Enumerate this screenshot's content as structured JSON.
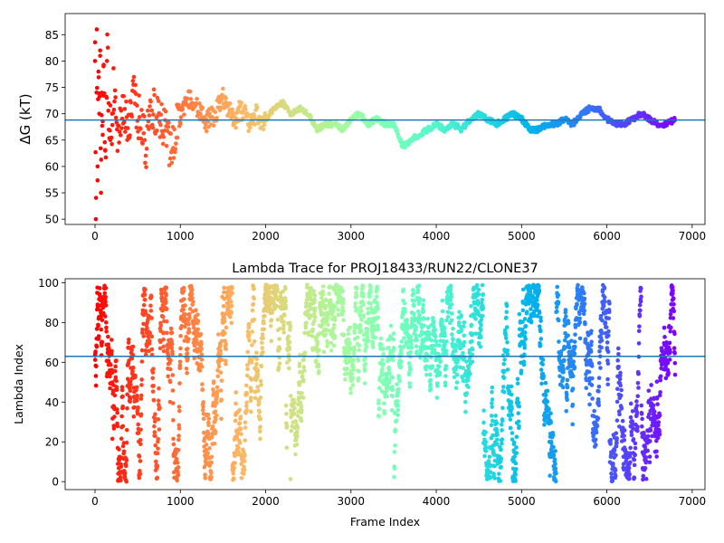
{
  "chart_data": [
    {
      "type": "scatter",
      "title": "",
      "xlabel": "",
      "ylabel": "ΔG (kT)",
      "xlim": [
        -350,
        7150
      ],
      "ylim": [
        49,
        89
      ],
      "xticks": [
        0,
        1000,
        2000,
        3000,
        4000,
        5000,
        6000,
        7000
      ],
      "xtick_labels": [
        "0",
        "1000",
        "2000",
        "3000",
        "4000",
        "5000",
        "6000",
        "7000"
      ],
      "yticks": [
        50,
        55,
        60,
        65,
        70,
        75,
        80,
        85
      ],
      "ytick_labels": [
        "50",
        "55",
        "60",
        "65",
        "70",
        "75",
        "80",
        "85"
      ],
      "colormap": "rainbow",
      "hline": 68.8,
      "hline_color": "#1f77b4",
      "grid": false,
      "n_frames": 6800,
      "series": [
        {
          "x": [
            0,
            10,
            20,
            30,
            40,
            50,
            60,
            70,
            80,
            90,
            100,
            120,
            140,
            160,
            180,
            200,
            230,
            260,
            300,
            350,
            400,
            450,
            500,
            550,
            600,
            650,
            700,
            750,
            800,
            850,
            900,
            950,
            1000,
            1050,
            1100,
            1150,
            1200,
            1250,
            1300,
            1350,
            1400,
            1450,
            1500,
            1550,
            1600,
            1650,
            1700,
            1750,
            1800,
            1850,
            1900,
            1950,
            2000,
            2100,
            2200,
            2300,
            2400,
            2500,
            2600,
            2700,
            2800,
            2900,
            3000,
            3100,
            3200,
            3300,
            3400,
            3500,
            3600,
            3650,
            3700,
            3800,
            3900,
            4000,
            4100,
            4200,
            4300,
            4400,
            4500,
            4600,
            4700,
            4800,
            4900,
            5000,
            5100,
            5200,
            5300,
            5400,
            5500,
            5600,
            5700,
            5800,
            5900,
            6000,
            6100,
            6200,
            6300,
            6400,
            6500,
            6600,
            6700,
            6800
          ],
          "y": [
            80,
            50,
            86,
            60,
            78,
            70,
            82,
            55,
            74,
            66,
            79,
            63,
            80,
            72,
            65,
            70,
            77,
            62,
            68,
            71,
            66,
            73,
            70,
            68,
            64,
            71,
            70,
            69,
            68,
            66,
            62,
            68,
            69,
            71,
            73,
            72,
            71,
            70,
            68,
            70,
            69,
            72,
            73,
            71,
            70,
            69,
            71,
            70,
            68,
            69,
            70,
            68,
            69,
            71,
            72,
            70,
            71,
            70,
            67,
            68,
            68,
            67,
            69,
            70,
            68,
            69,
            68,
            68,
            64,
            64,
            65,
            66,
            67,
            68,
            67,
            68,
            67,
            69,
            70,
            69,
            68,
            69,
            70,
            69,
            67,
            67,
            68,
            68,
            69,
            68,
            70,
            71,
            71,
            69,
            68,
            68,
            69,
            70,
            69,
            68,
            68,
            69
          ]
        }
      ]
    },
    {
      "type": "scatter",
      "title": "Lambda Trace for PROJ18433/RUN22/CLONE37",
      "xlabel": "Frame Index",
      "ylabel": "Lambda Index",
      "xlim": [
        -350,
        7150
      ],
      "ylim": [
        -4,
        102
      ],
      "xticks": [
        0,
        1000,
        2000,
        3000,
        4000,
        5000,
        6000,
        7000
      ],
      "xtick_labels": [
        "0",
        "1000",
        "2000",
        "3000",
        "4000",
        "5000",
        "6000",
        "7000"
      ],
      "yticks": [
        0,
        20,
        40,
        60,
        80,
        100
      ],
      "ytick_labels": [
        "0",
        "20",
        "40",
        "60",
        "80",
        "100"
      ],
      "colormap": "rainbow",
      "hline": 63,
      "hline_color": "#1f77b4",
      "grid": false,
      "n_frames": 6800,
      "lambda_range": [
        0,
        99
      ]
    }
  ]
}
